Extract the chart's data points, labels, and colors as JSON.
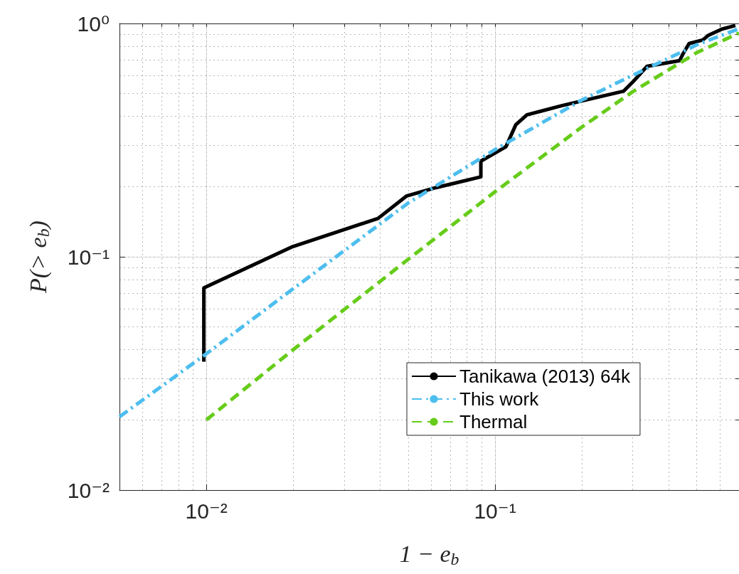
{
  "chart_data": {
    "type": "line",
    "xlabel": "1 − e$_{b}$",
    "ylabel": "P(> e$_{b}$)",
    "log": "xy",
    "grid": true,
    "legend": "bottom right",
    "marker": "none",
    "xlim": [
      0.005,
      0.7
    ],
    "ylim": [
      0.01,
      1
    ],
    "xticks": [
      {
        "value": 0.01,
        "label": "10⁻²"
      },
      {
        "value": 0.1,
        "label": "10⁻¹"
      }
    ],
    "yticks": [
      {
        "value": 0.01,
        "label": "10⁻²"
      },
      {
        "value": 0.1,
        "label": "10⁻¹"
      },
      {
        "value": 1,
        "label": "10⁰"
      }
    ],
    "series": [
      {
        "name": "Tanikawa (2013) 64k",
        "color": "#000000",
        "line_style": "solid",
        "x": [
          0.0098,
          0.0098,
          0.0197,
          0.0393,
          0.0493,
          0.0625,
          0.0893,
          0.0893,
          0.109,
          0.118,
          0.129,
          0.171,
          0.279,
          0.3,
          0.336,
          0.436,
          0.449,
          0.47,
          0.525,
          0.546,
          0.61,
          0.68
        ],
        "values": [
          0.0355,
          0.0735,
          0.11,
          0.146,
          0.182,
          0.198,
          0.22,
          0.257,
          0.296,
          0.368,
          0.406,
          0.445,
          0.513,
          0.561,
          0.655,
          0.693,
          0.745,
          0.82,
          0.85,
          0.887,
          0.946,
          0.98
        ]
      },
      {
        "name": "This work",
        "color": "#4dbeee",
        "line_style": "dashdot",
        "x": [
          0.005,
          0.01,
          0.02,
          0.05,
          0.1,
          0.2,
          0.3,
          0.5,
          0.7
        ],
        "values": [
          0.0206,
          0.0384,
          0.073,
          0.17,
          0.288,
          0.47,
          0.6,
          0.81,
          0.95
        ]
      },
      {
        "name": "Thermal",
        "color": "#66cc1a",
        "line_style": "dashed",
        "x": [
          0.01,
          0.02,
          0.05,
          0.1,
          0.2,
          0.3,
          0.5,
          0.7
        ],
        "values": [
          0.02,
          0.04,
          0.0975,
          0.19,
          0.36,
          0.51,
          0.75,
          0.91
        ]
      }
    ]
  }
}
